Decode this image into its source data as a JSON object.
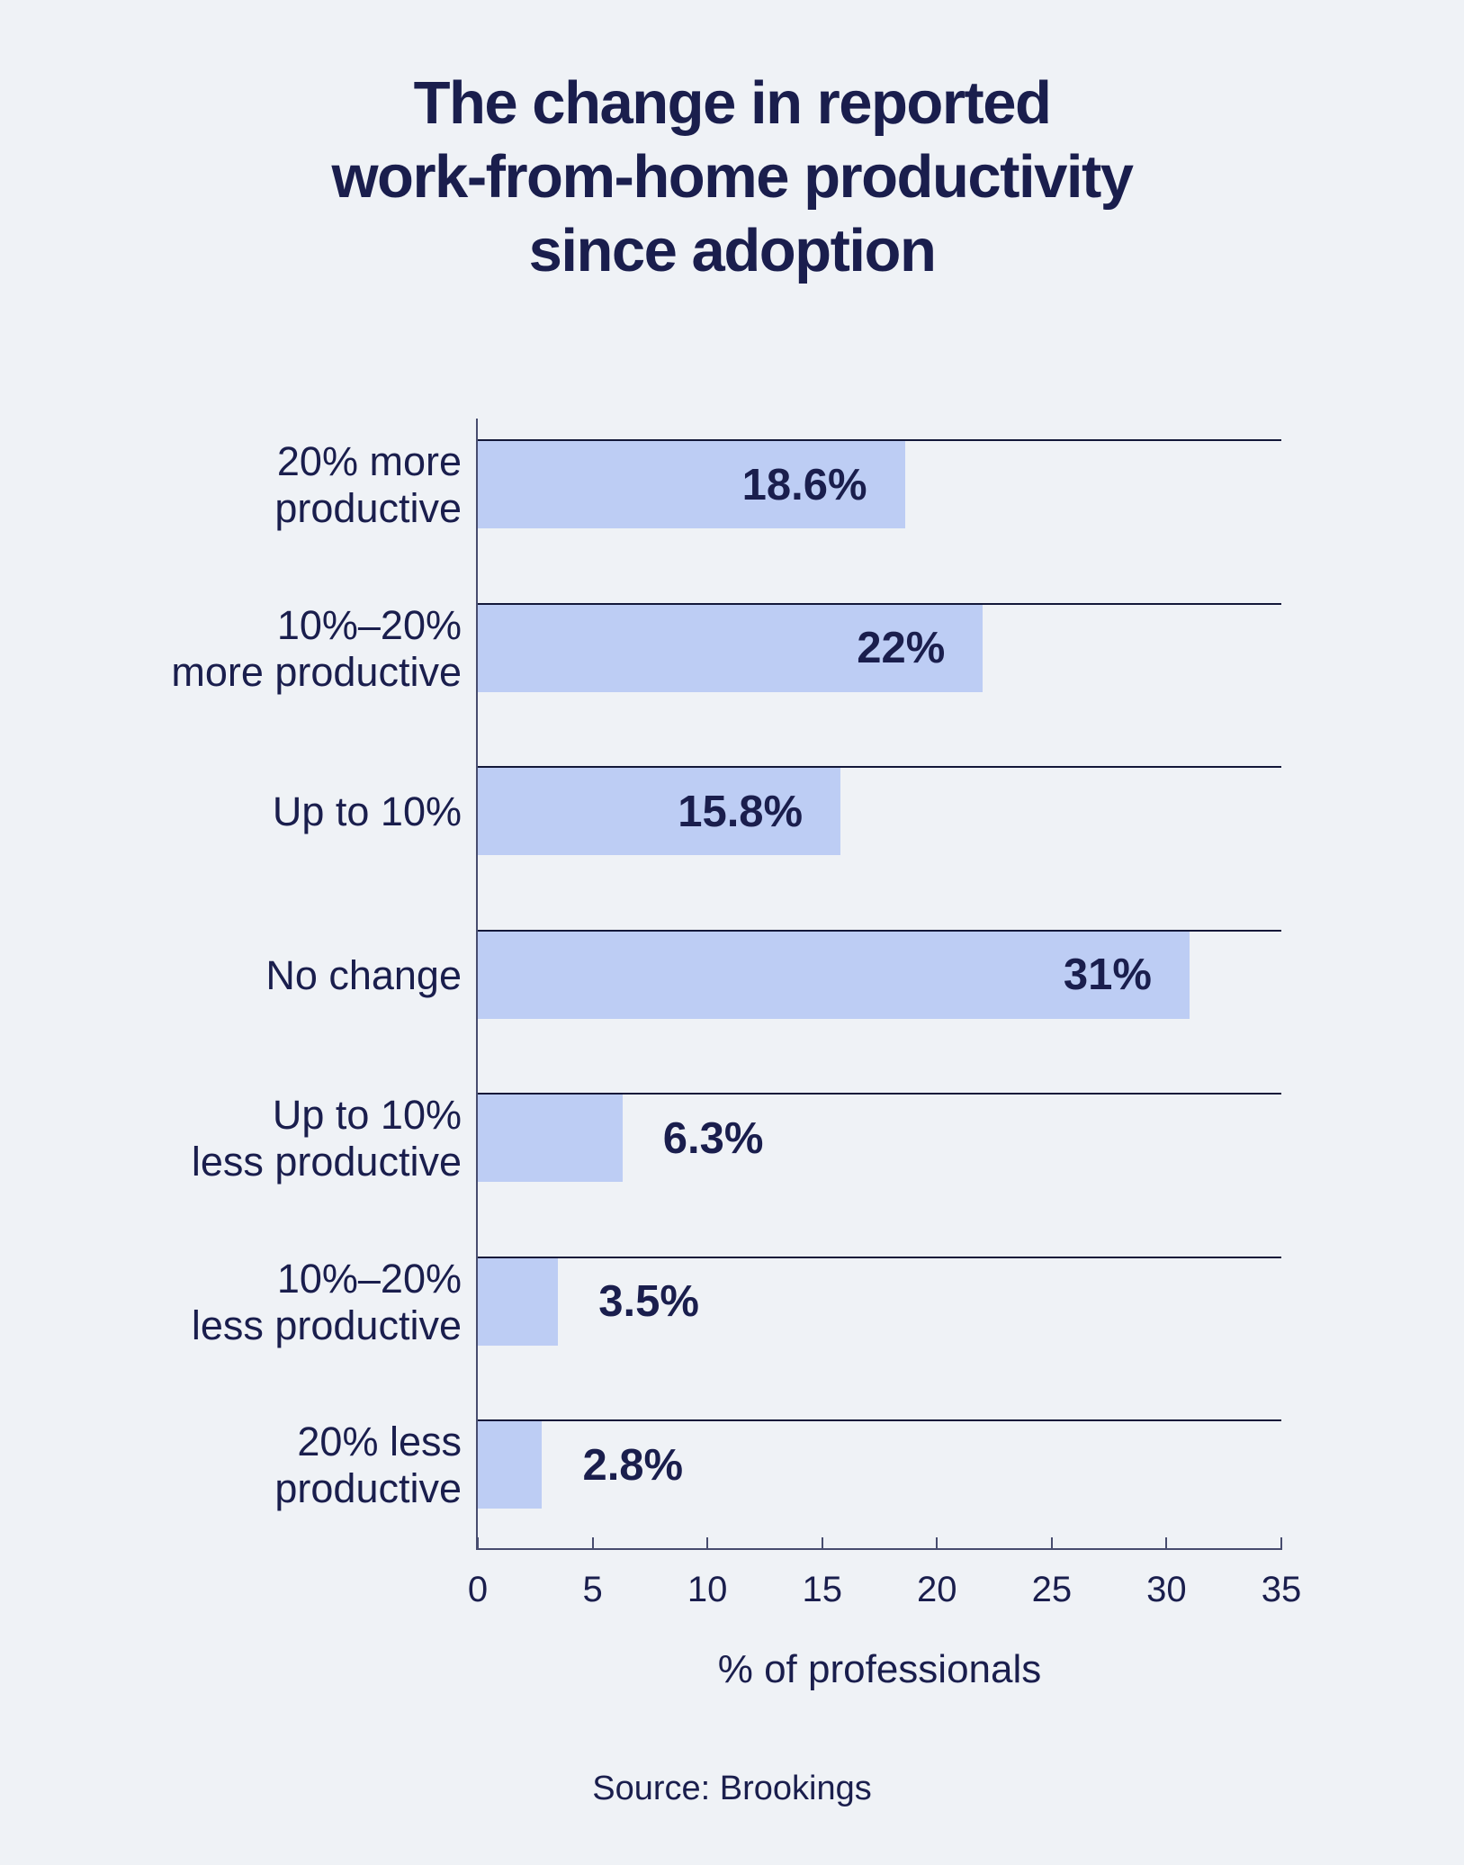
{
  "page": {
    "background_color": "#eff2f6",
    "text_color": "#1a1e4d",
    "title": "The change in reported\nwork-from-home productivity\nsince adoption",
    "source": "Source: Brookings"
  },
  "chart_data": {
    "type": "bar",
    "orientation": "horizontal",
    "title": "The change in reported work-from-home productivity since adoption",
    "xlabel": "% of professionals",
    "ylabel": "",
    "xlim": [
      0,
      35
    ],
    "xticks": [
      0,
      5,
      10,
      15,
      20,
      25,
      30,
      35
    ],
    "grid": false,
    "legend": false,
    "bar_color": "#bdcdf4",
    "categories": [
      "20% more\nproductive",
      "10%–20%\nmore productive",
      "Up to 10%",
      "No change",
      "Up to 10%\nless productive",
      "10%–20%\nless productive",
      "20% less\nproductive"
    ],
    "values": [
      18.6,
      22,
      15.8,
      31,
      6.3,
      3.5,
      2.8
    ],
    "value_labels": [
      "18.6%",
      "22%",
      "15.8%",
      "31%",
      "6.3%",
      "3.5%",
      "2.8%"
    ],
    "source": "Source: Brookings"
  }
}
